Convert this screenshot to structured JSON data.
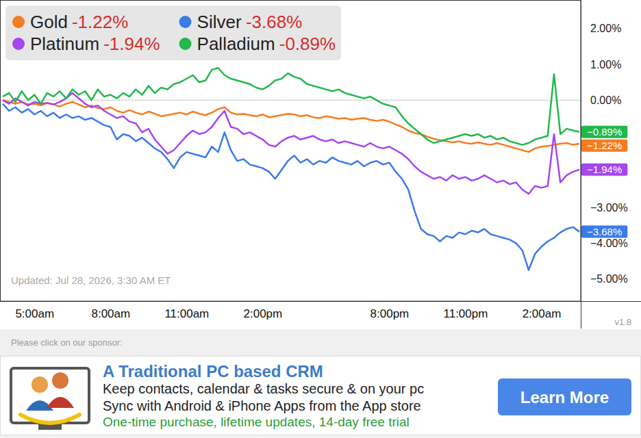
{
  "chart_data": {
    "type": "line",
    "annotations": [
      "Updated: Jul 28, 2026, 3:30 AM ET",
      "v1.8"
    ],
    "categories": [
      null,
      null,
      null,
      null,
      null,
      "5:00am",
      null,
      null,
      null,
      null,
      null,
      null,
      null,
      null,
      null,
      null,
      null,
      "8:00am",
      null,
      null,
      null,
      null,
      null,
      null,
      null,
      null,
      null,
      null,
      null,
      "11:00am",
      null,
      null,
      null,
      null,
      null,
      null,
      null,
      null,
      null,
      null,
      null,
      "2:00pm",
      null,
      null,
      null,
      null,
      null,
      null,
      null,
      null,
      null,
      null,
      null,
      null,
      null,
      null,
      null,
      null,
      null,
      null,
      null,
      "8:00pm",
      null,
      null,
      null,
      null,
      null,
      null,
      null,
      null,
      null,
      null,
      null,
      "11:00pm",
      null,
      null,
      null,
      null,
      null,
      null,
      null,
      null,
      null,
      null,
      null,
      "2:00am",
      null,
      null,
      null,
      null,
      null,
      null
    ],
    "series": [
      {
        "name": "Gold",
        "color": "#f57c1f",
        "change": -1.22,
        "legend_label": "-1.22%",
        "end_label": "−1.22%",
        "values": [
          0,
          -0.05,
          -0.1,
          -0.05,
          -0.12,
          -0.1,
          -0.15,
          -0.08,
          -0.12,
          -0.18,
          -0.1,
          -0.05,
          -0.12,
          -0.2,
          -0.15,
          -0.22,
          -0.25,
          -0.2,
          -0.3,
          -0.35,
          -0.28,
          -0.35,
          -0.4,
          -0.32,
          -0.38,
          -0.45,
          -0.42,
          -0.38,
          -0.35,
          -0.4,
          -0.32,
          -0.38,
          -0.42,
          -0.35,
          -0.25,
          -0.2,
          -0.35,
          -0.4,
          -0.38,
          -0.42,
          -0.45,
          -0.4,
          -0.48,
          -0.45,
          -0.42,
          -0.38,
          -0.4,
          -0.45,
          -0.42,
          -0.48,
          -0.5,
          -0.45,
          -0.48,
          -0.52,
          -0.5,
          -0.55,
          -0.52,
          -0.5,
          -0.55,
          -0.58,
          -0.55,
          -0.6,
          -0.68,
          -0.75,
          -0.85,
          -0.92,
          -0.95,
          -1.02,
          -1.08,
          -1.12,
          -1.15,
          -1.18,
          -1.15,
          -1.2,
          -1.22,
          -1.18,
          -1.22,
          -1.25,
          -1.2,
          -1.25,
          -1.3,
          -1.35,
          -1.4,
          -1.45,
          -1.35,
          -1.3,
          -1.28,
          -1.25,
          -1.22,
          -1.2,
          -1.25,
          -1.22
        ]
      },
      {
        "name": "Silver",
        "color": "#3a7be8",
        "change": -3.68,
        "legend_label": "-3.68%",
        "end_label": "−3.68%",
        "values": [
          -0.1,
          -0.3,
          -0.2,
          -0.35,
          -0.25,
          -0.4,
          -0.3,
          -0.45,
          -0.35,
          -0.5,
          -0.4,
          -0.5,
          -0.45,
          -0.55,
          -0.5,
          -0.6,
          -0.7,
          -0.75,
          -1.1,
          -0.95,
          -1.0,
          -1.15,
          -1.05,
          -1.2,
          -1.35,
          -1.45,
          -1.65,
          -1.9,
          -1.6,
          -1.45,
          -1.5,
          -1.55,
          -1.6,
          -1.3,
          -1.45,
          -0.9,
          -1.4,
          -1.7,
          -1.65,
          -1.8,
          -1.85,
          -1.9,
          -2.0,
          -2.2,
          -1.95,
          -1.7,
          -1.55,
          -1.75,
          -1.65,
          -1.8,
          -1.7,
          -1.75,
          -1.6,
          -1.7,
          -1.75,
          -1.8,
          -1.7,
          -1.85,
          -1.75,
          -1.7,
          -1.8,
          -1.75,
          -2.0,
          -2.2,
          -2.5,
          -3.1,
          -3.6,
          -3.75,
          -3.8,
          -3.95,
          -3.8,
          -3.85,
          -3.7,
          -3.75,
          -3.65,
          -3.7,
          -3.6,
          -3.75,
          -3.8,
          -3.85,
          -3.9,
          -4.0,
          -4.2,
          -4.75,
          -4.3,
          -4.1,
          -3.95,
          -3.85,
          -3.7,
          -3.6,
          -3.55,
          -3.68
        ]
      },
      {
        "name": "Platinum",
        "color": "#a546f0",
        "change": -1.94,
        "legend_label": "-1.94%",
        "end_label": "−1.94%",
        "values": [
          0,
          -0.1,
          0.05,
          -0.05,
          -0.15,
          -0.05,
          -0.1,
          -0.08,
          -0.12,
          -0.05,
          0.05,
          0.2,
          0.05,
          -0.1,
          -0.2,
          -0.15,
          -0.3,
          -0.4,
          -0.5,
          -0.45,
          -0.6,
          -0.65,
          -0.9,
          -0.8,
          -1.1,
          -1.3,
          -1.5,
          -1.4,
          -1.2,
          -1.0,
          -0.85,
          -0.95,
          -0.9,
          -0.75,
          -0.5,
          -0.3,
          -0.75,
          -0.8,
          -0.95,
          -0.9,
          -1.0,
          -1.1,
          -1.25,
          -1.3,
          -1.15,
          -1.05,
          -1.0,
          -1.1,
          -1.05,
          -1.0,
          -1.1,
          -1.15,
          -1.1,
          -1.2,
          -1.15,
          -1.2,
          -1.25,
          -1.3,
          -1.2,
          -1.3,
          -1.35,
          -1.3,
          -1.4,
          -1.5,
          -1.65,
          -1.85,
          -2.0,
          -2.1,
          -2.2,
          -2.15,
          -2.25,
          -2.1,
          -2.2,
          -2.15,
          -2.25,
          -2.2,
          -2.1,
          -2.2,
          -2.3,
          -2.25,
          -2.35,
          -2.3,
          -2.5,
          -2.62,
          -2.4,
          -2.45,
          -2.4,
          -0.95,
          -2.3,
          -2.1,
          -2.0,
          -1.94
        ]
      },
      {
        "name": "Palladium",
        "color": "#22b84c",
        "change": -0.89,
        "legend_label": "-0.89%",
        "end_label": "−0.89%",
        "values": [
          0.1,
          0.2,
          -0.05,
          0.25,
          0,
          0.15,
          -0.1,
          0.2,
          0.1,
          0.25,
          0.05,
          0.3,
          0.15,
          0.25,
          0,
          0.3,
          0.1,
          0.15,
          0.05,
          0.2,
          0.1,
          0.3,
          0.15,
          0.4,
          0.2,
          0.35,
          0.3,
          0.45,
          0.5,
          0.6,
          0.7,
          0.5,
          0.55,
          0.85,
          0.9,
          0.7,
          0.6,
          0.55,
          0.5,
          0.45,
          0.35,
          0.3,
          0.4,
          0.55,
          0.6,
          0.75,
          0.65,
          0.6,
          0.45,
          0.4,
          0.35,
          0.3,
          0.25,
          0.3,
          0.2,
          0.15,
          0.1,
          0.05,
          0.1,
          0,
          -0.1,
          -0.15,
          -0.2,
          -0.45,
          -0.65,
          -0.8,
          -0.95,
          -1.1,
          -1.2,
          -1.15,
          -1.1,
          -1.05,
          -1.0,
          -0.95,
          -1.0,
          -0.95,
          -1.05,
          -1.0,
          -1.1,
          -1.05,
          -1.15,
          -1.2,
          -1.25,
          -1.2,
          -1.1,
          -1.05,
          -1.0,
          0.73,
          -0.95,
          -0.8,
          -0.85,
          -0.89
        ]
      }
    ],
    "ylim": [
      -5.62,
      2.8
    ],
    "yticks": [
      {
        "value": 2,
        "label": "2.00%"
      },
      {
        "value": 1,
        "label": "1.00%"
      },
      {
        "value": 0,
        "label": "0.00%"
      },
      {
        "value": -3,
        "label": "−3.00%"
      },
      {
        "value": -4,
        "label": "−4.00%"
      },
      {
        "value": -5,
        "label": "−5.00%"
      }
    ],
    "grid": false,
    "legend": "upper left"
  },
  "sponsor": {
    "prompt": "Please click on our sponsor:",
    "title": "A Traditional PC based CRM",
    "lines": [
      "Keep contacts, calendar & tasks secure & on your pc",
      "Sync with Android & iPhone Apps from the App store"
    ],
    "offer": "One-time purchase, lifetime updates, 14-day free trial",
    "button": "Learn More"
  }
}
